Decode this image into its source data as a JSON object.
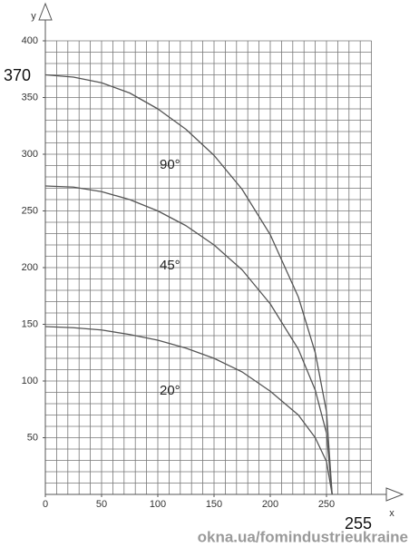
{
  "chart_data": {
    "type": "line",
    "x_label": "x",
    "y_label": "y",
    "x": [
      0,
      25,
      50,
      75,
      100,
      125,
      150,
      175,
      200,
      225,
      240,
      250,
      255
    ],
    "series": [
      {
        "name": "90°",
        "color": "#555555",
        "values": [
          370,
          368,
          363,
          354,
          340,
          322,
          299,
          269,
          229,
          174,
          125,
          73,
          0
        ]
      },
      {
        "name": "45°",
        "color": "#555555",
        "values": [
          272,
          271,
          267,
          260,
          250,
          237,
          220,
          198,
          168,
          128,
          92,
          54,
          0
        ]
      },
      {
        "name": "20°",
        "color": "#555555",
        "values": [
          148,
          147,
          145,
          141,
          136,
          129,
          120,
          108,
          91,
          70,
          50,
          29,
          0
        ]
      }
    ],
    "xlim": [
      0,
      290
    ],
    "ylim": [
      0,
      400
    ],
    "xticks": [
      0,
      50,
      100,
      150,
      200,
      250
    ],
    "yticks": [
      50,
      100,
      150,
      200,
      250,
      300,
      350,
      400
    ],
    "grid": true,
    "grid_step": 10,
    "annotations": [
      "370",
      "255"
    ],
    "source": "okna.ua/fomindustrieukraine"
  }
}
